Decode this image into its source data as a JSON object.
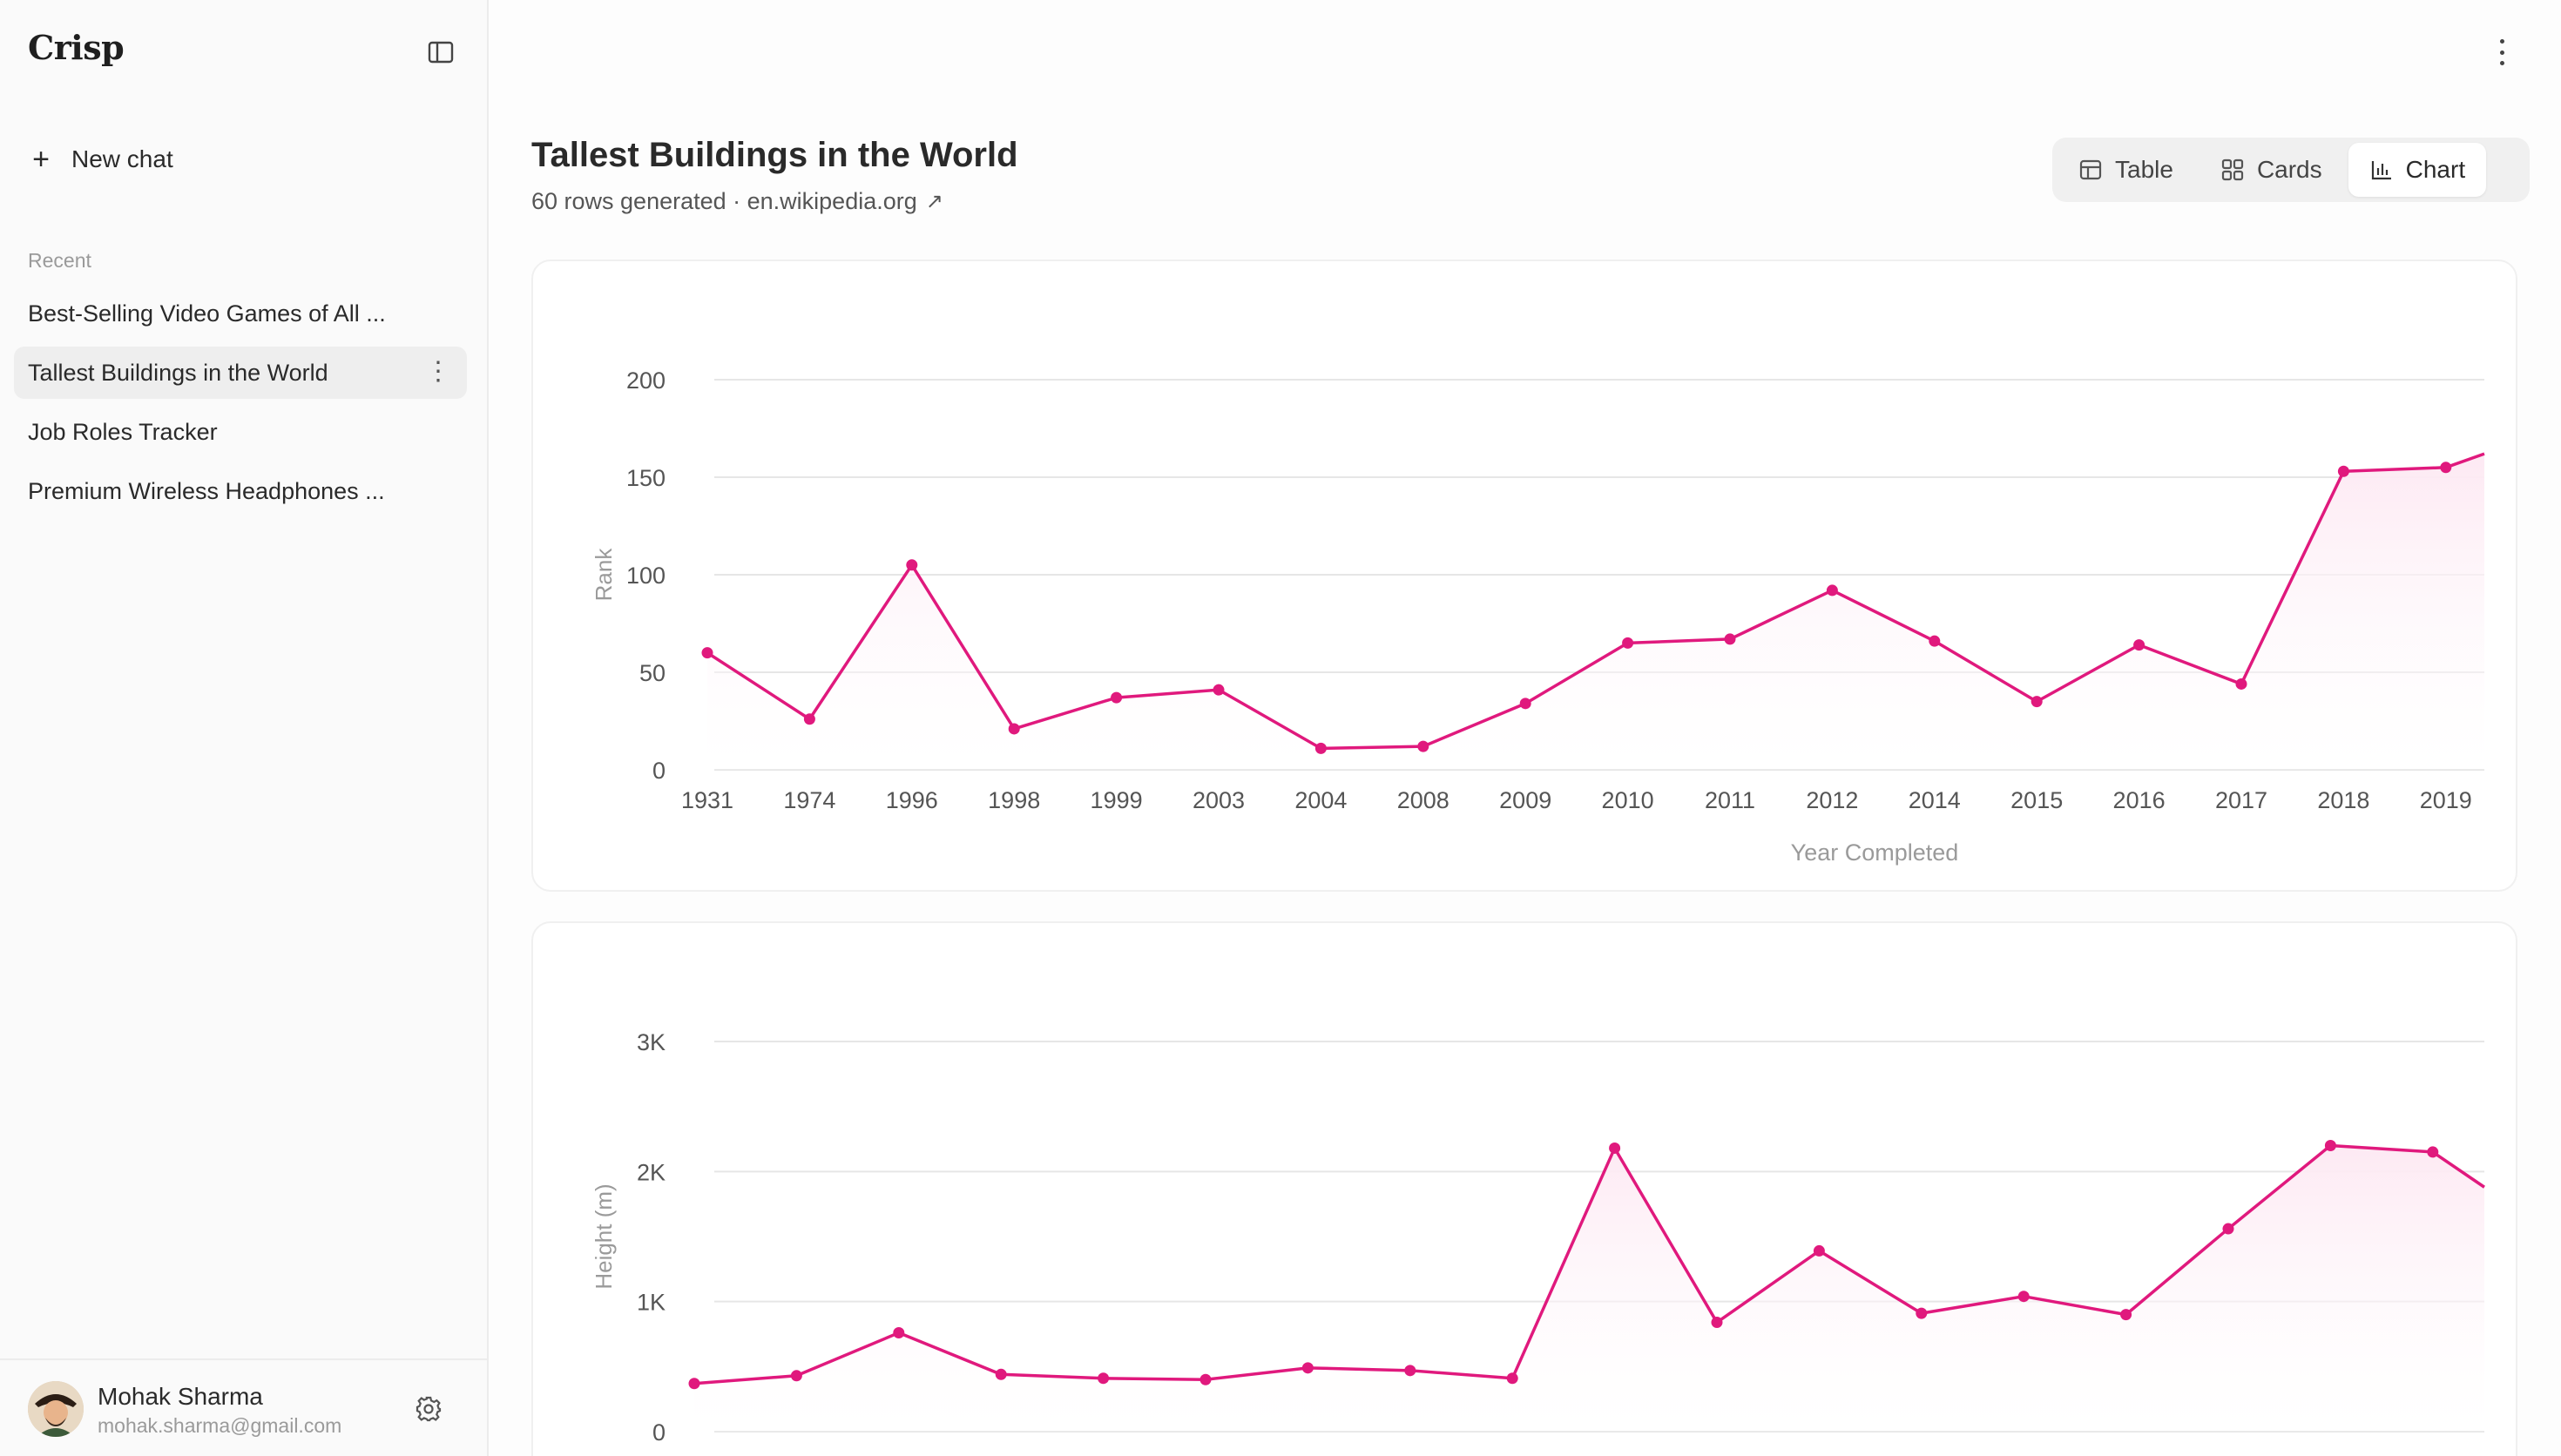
{
  "app": {
    "brand": "Crisp",
    "new_chat_label": "New chat",
    "recent_label": "Recent",
    "recent": [
      "Best-Selling Video Games of All ...",
      "Tallest Buildings in the World",
      "Job Roles Tracker",
      "Premium Wireless Headphones ..."
    ],
    "user": {
      "name": "Mohak Sharma",
      "email": "mohak.sharma@gmail.com"
    }
  },
  "page": {
    "title": "Tallest Buildings in the World",
    "subtitle": "60 rows generated · en.wikipedia.org",
    "link_icon": "↗",
    "views": {
      "table": "Table",
      "cards": "Cards",
      "chart": "Chart",
      "active": "Chart"
    }
  },
  "colors": {
    "accent": "#e0197d",
    "fill": "#fde9f3",
    "grid": "#e6e6e6",
    "axis_text": "#555555",
    "axis_label": "#9a9a9a"
  },
  "chart_data": [
    {
      "type": "line",
      "xlabel": "Year Completed",
      "ylabel": "Rank",
      "ylim": [
        0,
        200
      ],
      "yticks": [
        0,
        50,
        100,
        150,
        200
      ],
      "grid": true,
      "area_fill": true,
      "categories": [
        "1931",
        "1974",
        "1996",
        "1998",
        "1999",
        "2003",
        "2004",
        "2008",
        "2009",
        "2010",
        "2011",
        "2012",
        "2014",
        "2015",
        "2016",
        "2017",
        "2018",
        "2019"
      ],
      "values": [
        60,
        26,
        105,
        21,
        37,
        41,
        11,
        12,
        34,
        65,
        67,
        92,
        66,
        35,
        64,
        44,
        153,
        155
      ],
      "continues_right": 162
    },
    {
      "type": "line",
      "xlabel": "",
      "ylabel": "Height (m)",
      "ylim": [
        0,
        3000
      ],
      "yticks": [
        0,
        1000,
        2000,
        3000
      ],
      "ytick_labels": [
        "0",
        "1K",
        "2K",
        "3K"
      ],
      "grid": true,
      "area_fill": true,
      "values": [
        370,
        430,
        760,
        440,
        410,
        400,
        490,
        470,
        410,
        2180,
        840,
        1390,
        910,
        1040,
        900,
        1560,
        2200,
        2150
      ],
      "continues_right": 1880
    }
  ]
}
